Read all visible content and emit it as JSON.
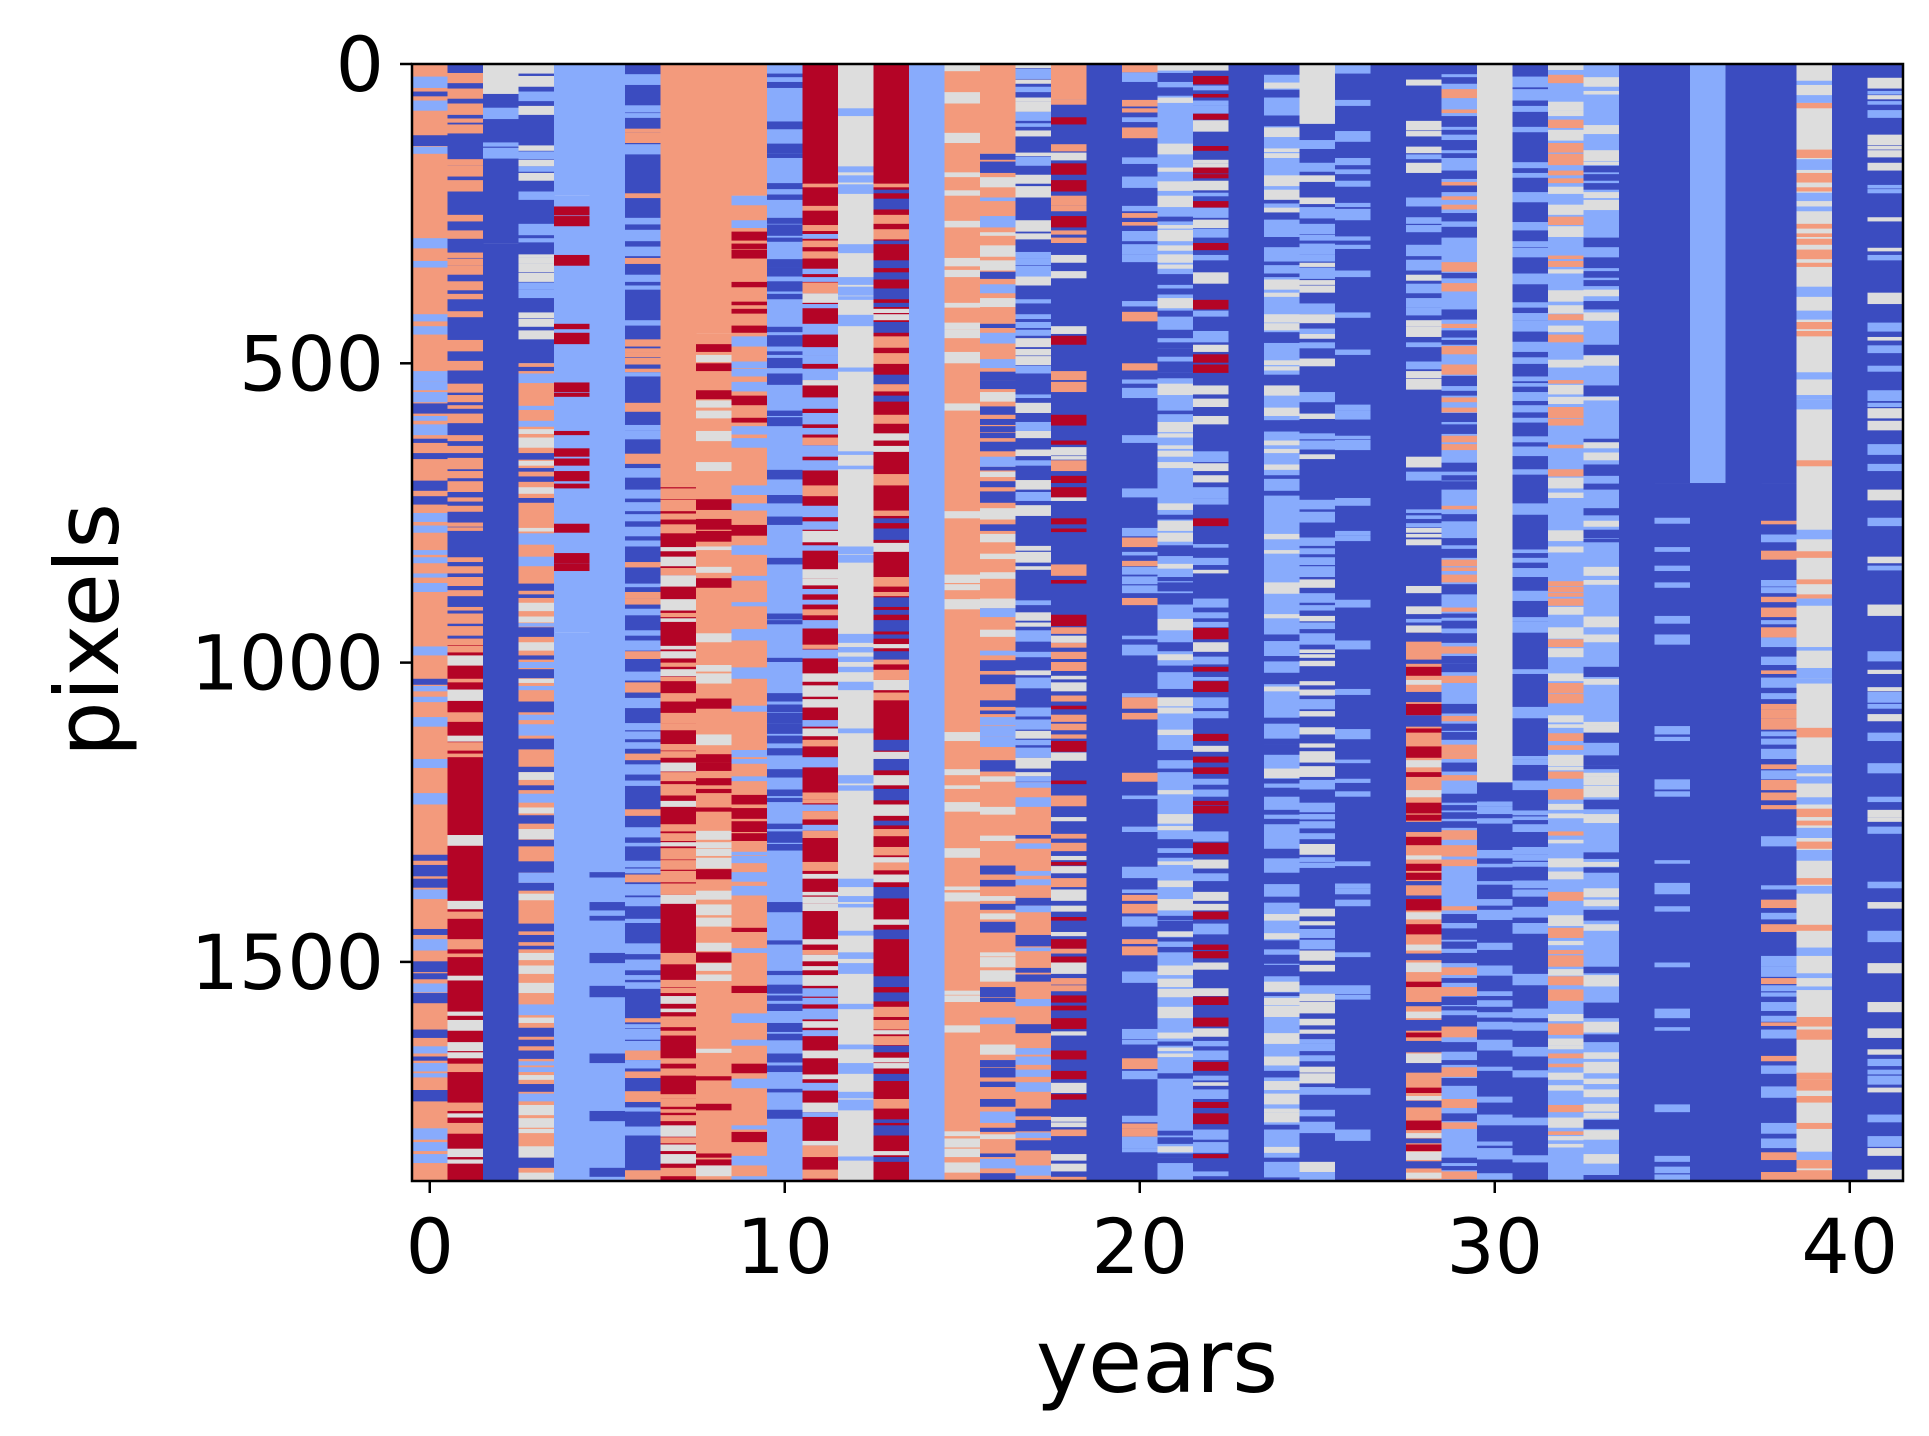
{
  "chart_data": {
    "type": "heatmap",
    "title": "",
    "xlabel": "years",
    "ylabel": "pixels",
    "x_ticks": [
      0,
      10,
      20,
      30,
      40
    ],
    "y_ticks": [
      0,
      500,
      1000,
      1500
    ],
    "xlim": [
      -0.5,
      41.5
    ],
    "ylim": [
      1866,
      0
    ],
    "n_columns": 42,
    "n_rows": 1866,
    "colormap": "coolwarm",
    "colors": [
      "#3b4cc0",
      "#88abfc",
      "#dddddd",
      "#f39a7c",
      "#b40426"
    ],
    "columns": [
      {
        "x": 0,
        "segments": [
          [
            0,
            1866,
            [
              3,
              3,
              1,
              0
            ]
          ]
        ]
      },
      {
        "x": 1,
        "segments": [
          [
            0,
            960,
            [
              0,
              3,
              3
            ]
          ],
          [
            960,
            1866,
            [
              4,
              3,
              2,
              4
            ]
          ]
        ]
      },
      {
        "x": 2,
        "segments": [
          [
            0,
            50,
            [
              2
            ]
          ],
          [
            50,
            300,
            [
              0,
              0,
              1
            ]
          ],
          [
            300,
            1866,
            [
              0
            ]
          ]
        ]
      },
      {
        "x": 3,
        "segments": [
          [
            0,
            500,
            [
              0,
              1,
              2
            ]
          ],
          [
            500,
            1866,
            [
              3,
              2,
              0,
              1
            ]
          ]
        ]
      },
      {
        "x": 4,
        "segments": [
          [
            0,
            220,
            [
              1
            ]
          ],
          [
            220,
            950,
            [
              1,
              4,
              1,
              1
            ]
          ],
          [
            950,
            1866,
            [
              1
            ]
          ]
        ]
      },
      {
        "x": 5,
        "segments": [
          [
            0,
            1350,
            [
              1
            ]
          ],
          [
            1350,
            1866,
            [
              1,
              0,
              1,
              1
            ]
          ]
        ]
      },
      {
        "x": 6,
        "segments": [
          [
            0,
            1866,
            [
              0,
              1,
              0,
              1,
              3
            ]
          ]
        ]
      },
      {
        "x": 7,
        "segments": [
          [
            0,
            700,
            [
              3
            ]
          ],
          [
            700,
            1866,
            [
              4,
              3,
              3,
              2
            ]
          ]
        ]
      },
      {
        "x": 8,
        "segments": [
          [
            0,
            450,
            [
              3
            ]
          ],
          [
            450,
            1866,
            [
              3,
              3,
              2,
              4
            ]
          ]
        ]
      },
      {
        "x": 9,
        "segments": [
          [
            0,
            220,
            [
              3
            ]
          ],
          [
            220,
            1866,
            [
              3,
              4,
              3,
              1
            ]
          ]
        ]
      },
      {
        "x": 10,
        "segments": [
          [
            0,
            1866,
            [
              1,
              0,
              0,
              1
            ]
          ]
        ]
      },
      {
        "x": 11,
        "segments": [
          [
            0,
            200,
            [
              4
            ]
          ],
          [
            200,
            1866,
            [
              4,
              3,
              2,
              1
            ]
          ]
        ]
      },
      {
        "x": 12,
        "segments": [
          [
            0,
            1866,
            [
              2,
              2,
              1
            ]
          ]
        ]
      },
      {
        "x": 13,
        "segments": [
          [
            0,
            200,
            [
              4
            ]
          ],
          [
            200,
            1866,
            [
              4,
              3,
              0,
              2
            ]
          ]
        ]
      },
      {
        "x": 14,
        "segments": [
          [
            0,
            1866,
            [
              1
            ]
          ]
        ]
      },
      {
        "x": 15,
        "segments": [
          [
            0,
            1866,
            [
              3,
              3,
              2
            ]
          ]
        ]
      },
      {
        "x": 16,
        "segments": [
          [
            0,
            150,
            [
              3
            ]
          ],
          [
            150,
            1866,
            [
              3,
              2,
              0,
              1
            ]
          ]
        ]
      },
      {
        "x": 17,
        "segments": [
          [
            0,
            1200,
            [
              0,
              1,
              2
            ]
          ],
          [
            1200,
            1866,
            [
              3,
              0,
              1
            ]
          ]
        ]
      },
      {
        "x": 18,
        "segments": [
          [
            0,
            60,
            [
              3
            ]
          ],
          [
            60,
            1866,
            [
              0,
              4,
              3,
              2
            ]
          ]
        ]
      },
      {
        "x": 19,
        "segments": [
          [
            0,
            1866,
            [
              0
            ]
          ]
        ]
      },
      {
        "x": 20,
        "segments": [
          [
            0,
            1866,
            [
              0,
              0,
              1,
              3
            ]
          ]
        ]
      },
      {
        "x": 21,
        "segments": [
          [
            0,
            1866,
            [
              1,
              2,
              0
            ]
          ]
        ]
      },
      {
        "x": 22,
        "segments": [
          [
            0,
            1866,
            [
              0,
              1,
              2,
              4
            ]
          ]
        ]
      },
      {
        "x": 23,
        "segments": [
          [
            0,
            1866,
            [
              0
            ]
          ]
        ]
      },
      {
        "x": 24,
        "segments": [
          [
            0,
            1866,
            [
              1,
              0,
              2
            ]
          ]
        ]
      },
      {
        "x": 25,
        "segments": [
          [
            0,
            100,
            [
              2
            ]
          ],
          [
            100,
            1866,
            [
              0,
              1,
              2
            ]
          ]
        ]
      },
      {
        "x": 26,
        "segments": [
          [
            0,
            1866,
            [
              0,
              1,
              0
            ]
          ]
        ]
      },
      {
        "x": 27,
        "segments": [
          [
            0,
            1866,
            [
              0
            ]
          ]
        ]
      },
      {
        "x": 28,
        "segments": [
          [
            0,
            950,
            [
              0,
              1,
              2
            ]
          ],
          [
            950,
            1866,
            [
              3,
              0,
              2,
              4
            ]
          ]
        ]
      },
      {
        "x": 29,
        "segments": [
          [
            0,
            1866,
            [
              1,
              0,
              0,
              3
            ]
          ]
        ]
      },
      {
        "x": 30,
        "segments": [
          [
            0,
            1200,
            [
              2
            ]
          ],
          [
            1200,
            1866,
            [
              0,
              1
            ]
          ]
        ]
      },
      {
        "x": 31,
        "segments": [
          [
            0,
            1866,
            [
              0,
              1
            ]
          ]
        ]
      },
      {
        "x": 32,
        "segments": [
          [
            0,
            1866,
            [
              1,
              2,
              3
            ]
          ]
        ]
      },
      {
        "x": 33,
        "segments": [
          [
            0,
            1866,
            [
              1,
              0,
              2
            ]
          ]
        ]
      },
      {
        "x": 34,
        "segments": [
          [
            0,
            1866,
            [
              0
            ]
          ]
        ]
      },
      {
        "x": 35,
        "segments": [
          [
            0,
            700,
            [
              0
            ]
          ],
          [
            700,
            1866,
            [
              0,
              0,
              1
            ]
          ]
        ]
      },
      {
        "x": 36,
        "segments": [
          [
            0,
            700,
            [
              1
            ]
          ],
          [
            700,
            1866,
            [
              0
            ]
          ]
        ]
      },
      {
        "x": 37,
        "segments": [
          [
            0,
            1866,
            [
              0
            ]
          ]
        ]
      },
      {
        "x": 38,
        "segments": [
          [
            0,
            700,
            [
              0
            ]
          ],
          [
            700,
            1866,
            [
              0,
              1,
              3
            ]
          ]
        ]
      },
      {
        "x": 39,
        "segments": [
          [
            0,
            1866,
            [
              2,
              3,
              2,
              1
            ]
          ]
        ]
      },
      {
        "x": 40,
        "segments": [
          [
            0,
            1866,
            [
              0
            ]
          ]
        ]
      },
      {
        "x": 41,
        "segments": [
          [
            0,
            1866,
            [
              0,
              1,
              0,
              2
            ]
          ]
        ]
      }
    ]
  }
}
